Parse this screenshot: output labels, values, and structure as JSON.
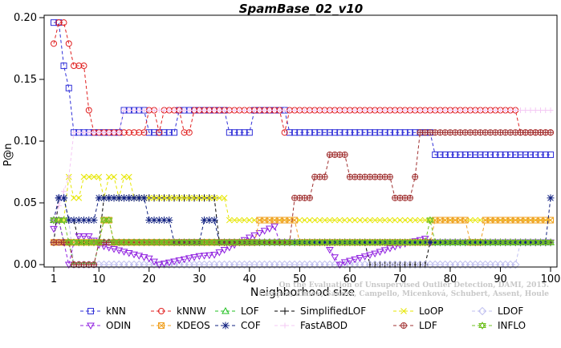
{
  "chart_data": {
    "type": "line",
    "title": "SpamBase_02_v10",
    "xlabel": "Neighborhood size",
    "ylabel": "P@n",
    "xlim": [
      1,
      100
    ],
    "ylim": [
      0,
      0.2
    ],
    "xticks": [
      1,
      10,
      20,
      30,
      40,
      50,
      60,
      70,
      80,
      90,
      100
    ],
    "xtick_labels": [
      "1",
      "10",
      "20",
      "30",
      "40",
      "50",
      "60",
      "70",
      "80",
      "90",
      "100"
    ],
    "yticks": [
      0,
      0.05,
      0.1,
      0.15,
      0.2
    ],
    "ytick_labels": [
      "0.00",
      "0.05",
      "0.10",
      "0.15",
      "0.20"
    ],
    "legend_position": "bottom",
    "credit_lines": [
      "Campos, Zimek, Sander, Campello, Micenková, Schubert, Assent, Houle",
      "On the Evaluation of Unsupervised Outlier Detection, DAMI, 2015."
    ],
    "series": [
      {
        "name": "kNN",
        "color": "#3030d8",
        "marker": "square",
        "points": [
          [
            1,
            0.196
          ],
          [
            2,
            0.196
          ],
          [
            3,
            0.161
          ],
          [
            4,
            0.143
          ],
          [
            5,
            0.107
          ],
          [
            14,
            0.107
          ],
          [
            15,
            0.125
          ],
          [
            19,
            0.125
          ],
          [
            20,
            0.107
          ],
          [
            25,
            0.107
          ],
          [
            26,
            0.125
          ],
          [
            35,
            0.125
          ],
          [
            36,
            0.107
          ],
          [
            40,
            0.107
          ],
          [
            41,
            0.125
          ],
          [
            47,
            0.125
          ],
          [
            48,
            0.107
          ],
          [
            76,
            0.107
          ],
          [
            77,
            0.089
          ],
          [
            100,
            0.089
          ]
        ]
      },
      {
        "name": "kNNW",
        "color": "#e02020",
        "marker": "circle",
        "points": [
          [
            1,
            0.179
          ],
          [
            2,
            0.196
          ],
          [
            3,
            0.196
          ],
          [
            4,
            0.179
          ],
          [
            5,
            0.161
          ],
          [
            7,
            0.161
          ],
          [
            8,
            0.125
          ],
          [
            9,
            0.107
          ],
          [
            19,
            0.107
          ],
          [
            20,
            0.125
          ],
          [
            21,
            0.125
          ],
          [
            22,
            0.107
          ],
          [
            23,
            0.125
          ],
          [
            26,
            0.125
          ],
          [
            27,
            0.107
          ],
          [
            28,
            0.107
          ],
          [
            29,
            0.125
          ],
          [
            46,
            0.125
          ],
          [
            47,
            0.107
          ],
          [
            48,
            0.125
          ],
          [
            93,
            0.125
          ],
          [
            94,
            0.107
          ],
          [
            100,
            0.107
          ]
        ]
      },
      {
        "name": "LOF",
        "color": "#20c020",
        "marker": "triangle",
        "points": [
          [
            1,
            0.036
          ],
          [
            2,
            0.036
          ],
          [
            3,
            0.018
          ],
          [
            4,
            0.018
          ],
          [
            5,
            0.0
          ],
          [
            9,
            0.0
          ],
          [
            10,
            0.018
          ],
          [
            100,
            0.018
          ]
        ]
      },
      {
        "name": "SimplifiedLOF",
        "color": "#000000",
        "marker": "plus",
        "points": [
          [
            1,
            0.018
          ],
          [
            2,
            0.054
          ],
          [
            3,
            0.054
          ],
          [
            4,
            0.036
          ],
          [
            5,
            0.036
          ],
          [
            6,
            0.018
          ],
          [
            10,
            0.018
          ],
          [
            11,
            0.054
          ],
          [
            33,
            0.054
          ],
          [
            34,
            0.018
          ],
          [
            63,
            0.018
          ],
          [
            64,
            0.0
          ],
          [
            75,
            0.0
          ],
          [
            76,
            0.018
          ],
          [
            100,
            0.018
          ]
        ]
      },
      {
        "name": "LoOP",
        "color": "#e6e600",
        "marker": "cross",
        "points": [
          [
            1,
            0.036
          ],
          [
            3,
            0.036
          ],
          [
            4,
            0.071
          ],
          [
            5,
            0.054
          ],
          [
            6,
            0.054
          ],
          [
            7,
            0.071
          ],
          [
            10,
            0.071
          ],
          [
            11,
            0.054
          ],
          [
            12,
            0.071
          ],
          [
            13,
            0.071
          ],
          [
            14,
            0.054
          ],
          [
            15,
            0.071
          ],
          [
            16,
            0.071
          ],
          [
            17,
            0.054
          ],
          [
            35,
            0.054
          ],
          [
            36,
            0.036
          ],
          [
            100,
            0.036
          ]
        ]
      },
      {
        "name": "LDOF",
        "color": "#c0c0f0",
        "marker": "diamond",
        "points": [
          [
            1,
            0.036
          ],
          [
            2,
            0.054
          ],
          [
            3,
            0.054
          ],
          [
            4,
            0.036
          ],
          [
            5,
            0.0
          ],
          [
            85,
            0.0
          ],
          [
            86,
            0.0
          ],
          [
            93,
            0.0
          ],
          [
            94,
            0.018
          ],
          [
            100,
            0.018
          ]
        ]
      },
      {
        "name": "ODIN",
        "color": "#9020e0",
        "marker": "triangle-down",
        "points": [
          [
            1,
            0.029
          ],
          [
            2,
            0.036
          ],
          [
            3,
            0.018
          ],
          [
            4,
            0.0
          ],
          [
            5,
            0.018
          ],
          [
            6,
            0.023
          ],
          [
            8,
            0.023
          ],
          [
            10,
            0.016
          ],
          [
            20,
            0.005
          ],
          [
            22,
            0.0
          ],
          [
            30,
            0.007
          ],
          [
            33,
            0.008
          ],
          [
            40,
            0.022
          ],
          [
            45,
            0.031
          ],
          [
            46,
            0.018
          ],
          [
            55,
            0.018
          ],
          [
            58,
            0.0
          ],
          [
            59,
            0.002
          ],
          [
            65,
            0.009
          ],
          [
            70,
            0.016
          ],
          [
            75,
            0.021
          ],
          [
            76,
            0.018
          ],
          [
            100,
            0.018
          ]
        ]
      },
      {
        "name": "KDEOS",
        "color": "#f0a020",
        "marker": "square-x",
        "points": [
          [
            1,
            0.018
          ],
          [
            10,
            0.018
          ],
          [
            11,
            0.036
          ],
          [
            12,
            0.036
          ],
          [
            13,
            0.018
          ],
          [
            41,
            0.018
          ],
          [
            42,
            0.036
          ],
          [
            49,
            0.036
          ],
          [
            50,
            0.018
          ],
          [
            76,
            0.018
          ],
          [
            77,
            0.036
          ],
          [
            83,
            0.036
          ],
          [
            84,
            0.018
          ],
          [
            86,
            0.018
          ],
          [
            87,
            0.036
          ],
          [
            100,
            0.036
          ]
        ]
      },
      {
        "name": "COF",
        "color": "#102080",
        "marker": "asterisk",
        "points": [
          [
            1,
            0.036
          ],
          [
            2,
            0.054
          ],
          [
            3,
            0.054
          ],
          [
            4,
            0.036
          ],
          [
            9,
            0.036
          ],
          [
            10,
            0.054
          ],
          [
            19,
            0.054
          ],
          [
            20,
            0.036
          ],
          [
            24,
            0.036
          ],
          [
            25,
            0.018
          ],
          [
            30,
            0.018
          ],
          [
            31,
            0.036
          ],
          [
            33,
            0.036
          ],
          [
            34,
            0.018
          ],
          [
            99,
            0.018
          ],
          [
            100,
            0.054
          ]
        ]
      },
      {
        "name": "FastABOD",
        "color": "#f4c8f4",
        "marker": "plus-small",
        "points": [
          [
            1,
            0.036
          ],
          [
            4,
            0.071
          ],
          [
            5,
            0.107
          ],
          [
            14,
            0.107
          ],
          [
            15,
            0.125
          ],
          [
            100,
            0.125
          ]
        ]
      },
      {
        "name": "LDF",
        "color": "#a03030",
        "marker": "circle-plus",
        "points": [
          [
            1,
            0.018
          ],
          [
            3,
            0.018
          ],
          [
            4,
            0.018
          ],
          [
            5,
            0.0
          ],
          [
            9,
            0.0
          ],
          [
            10,
            0.018
          ],
          [
            48,
            0.018
          ],
          [
            49,
            0.054
          ],
          [
            52,
            0.054
          ],
          [
            53,
            0.071
          ],
          [
            55,
            0.071
          ],
          [
            56,
            0.089
          ],
          [
            59,
            0.089
          ],
          [
            60,
            0.071
          ],
          [
            68,
            0.071
          ],
          [
            69,
            0.054
          ],
          [
            72,
            0.054
          ],
          [
            73,
            0.071
          ],
          [
            74,
            0.107
          ],
          [
            85,
            0.107
          ],
          [
            86,
            0.107
          ],
          [
            100,
            0.107
          ]
        ]
      },
      {
        "name": "INFLO",
        "color": "#70c020",
        "marker": "star",
        "points": [
          [
            1,
            0.036
          ],
          [
            3,
            0.036
          ],
          [
            4,
            0.018
          ],
          [
            10,
            0.018
          ],
          [
            11,
            0.036
          ],
          [
            12,
            0.036
          ],
          [
            13,
            0.018
          ],
          [
            75,
            0.018
          ],
          [
            76,
            0.036
          ],
          [
            77,
            0.018
          ],
          [
            100,
            0.018
          ]
        ]
      }
    ]
  }
}
